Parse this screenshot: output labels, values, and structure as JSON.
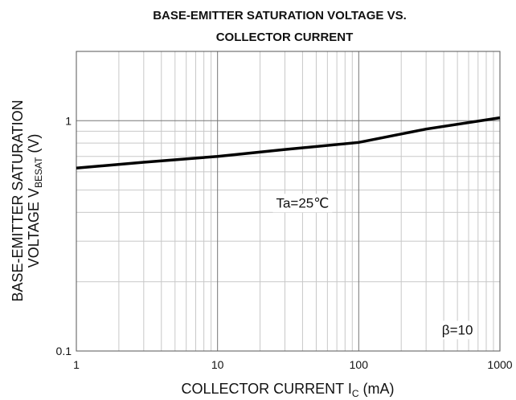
{
  "chart_data": {
    "type": "line",
    "title": [
      "BASE-EMITTER SATURATION  VOLTAGE  VS.",
      "COLLECTOR CURRENT"
    ],
    "xlabel": {
      "text": "COLLECTOR CURRENT  I",
      "sub": "C",
      "tail": " (mA)"
    },
    "ylabel": {
      "line1": "BASE-EMITTER  SATURATION",
      "text": "VOLTAGE  V",
      "sub": "BESAT",
      "tail": " (V)"
    },
    "x": [
      1,
      3,
      10,
      30,
      100,
      300,
      1000
    ],
    "values": [
      0.623,
      0.66,
      0.7,
      0.75,
      0.805,
      0.92,
      1.03
    ],
    "color": "#000000",
    "xlog": true,
    "ylog": true,
    "xlim": [
      1,
      1000
    ],
    "ylim": [
      0.1,
      2
    ],
    "xticks": [
      1,
      10,
      100,
      1000
    ],
    "yticks": [
      0.1,
      1
    ],
    "xminor": [
      2,
      3,
      4,
      5,
      6,
      7,
      8,
      9,
      20,
      30,
      40,
      50,
      60,
      70,
      80,
      90,
      200,
      300,
      400,
      500,
      600,
      700,
      800,
      900
    ],
    "yminor": [
      0.2,
      0.3,
      0.4,
      0.5,
      0.6,
      0.7,
      0.8,
      0.9,
      2
    ],
    "grid": true,
    "annotations": [
      {
        "text": "Ta=25℃",
        "x": 40,
        "y": 0.42
      },
      {
        "text": "β=10",
        "x": 500,
        "y": 0.118
      }
    ]
  }
}
